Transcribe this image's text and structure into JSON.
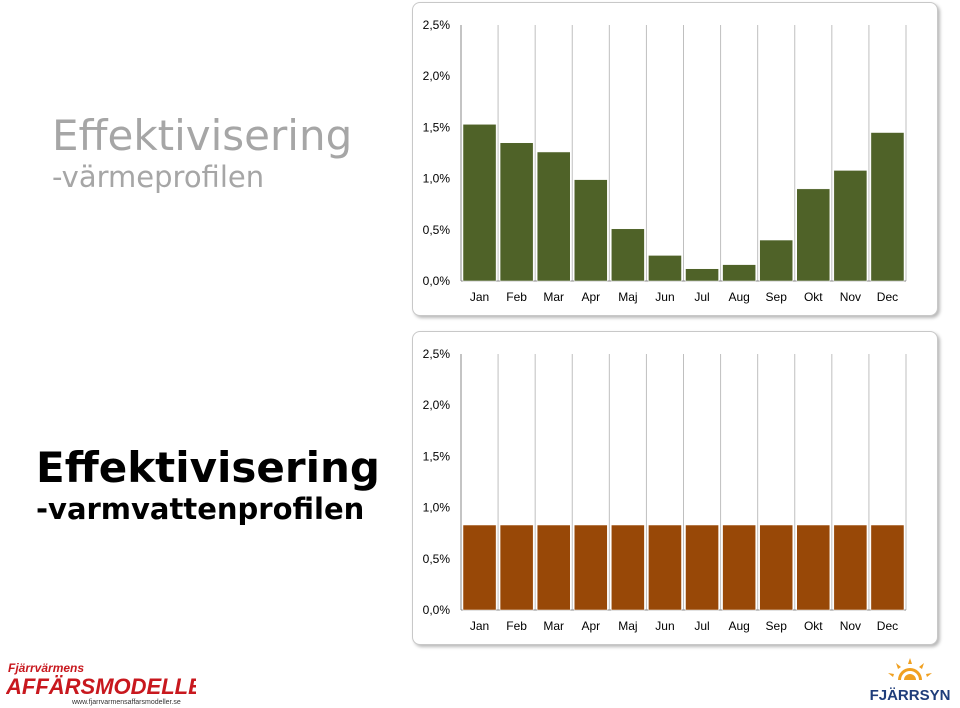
{
  "slide": {
    "heading_1": {
      "title": "Effektivisering",
      "subtitle": "-värmeprofilen"
    },
    "heading_2": {
      "title": "Effektivisering",
      "subtitle": "-varmvattenprofilen"
    }
  },
  "chart_data": [
    {
      "type": "bar",
      "title": "",
      "xlabel": "",
      "ylabel": "",
      "categories": [
        "Jan",
        "Feb",
        "Mar",
        "Apr",
        "Maj",
        "Jun",
        "Jul",
        "Aug",
        "Sep",
        "Okt",
        "Nov",
        "Dec"
      ],
      "values": [
        1.53,
        1.35,
        1.26,
        0.99,
        0.51,
        0.25,
        0.12,
        0.16,
        0.4,
        0.9,
        1.08,
        1.45
      ],
      "ylim": [
        0,
        2.5
      ],
      "yticks": [
        "0,0%",
        "0,5%",
        "1,0%",
        "1,5%",
        "2,0%",
        "2,5%"
      ],
      "grid": "vertical",
      "bar_color": "#4f6228"
    },
    {
      "type": "bar",
      "title": "",
      "xlabel": "",
      "ylabel": "",
      "categories": [
        "Jan",
        "Feb",
        "Mar",
        "Apr",
        "Maj",
        "Jun",
        "Jul",
        "Aug",
        "Sep",
        "Okt",
        "Nov",
        "Dec"
      ],
      "values": [
        0.83,
        0.83,
        0.83,
        0.83,
        0.83,
        0.83,
        0.83,
        0.83,
        0.83,
        0.83,
        0.83,
        0.83
      ],
      "ylim": [
        0,
        2.5
      ],
      "yticks": [
        "0,0%",
        "0,5%",
        "1,0%",
        "1,5%",
        "2,0%",
        "2,5%"
      ],
      "grid": "vertical",
      "bar_color": "#984807"
    }
  ],
  "logos": {
    "left": {
      "line1": "Fjärrvärmens",
      "line2": "AFFÄRSMODELLER",
      "url": "www.fjarrvarmensaffarsmodeller.se"
    },
    "right": {
      "text": "FJÄRRSYN"
    }
  },
  "colors": {
    "logo_red": "#c8181e",
    "logo_blue": "#1f3d7a",
    "sun_orange": "#f0a020"
  }
}
